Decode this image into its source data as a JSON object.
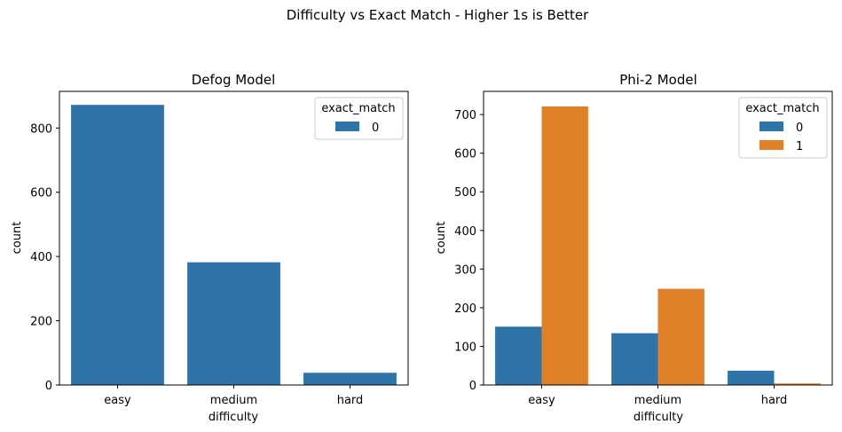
{
  "suptitle": "Difficulty vs Exact Match - Higher 1s is Better",
  "colors": {
    "series_0": "#2f74a8",
    "series_1": "#e0812a"
  },
  "chart_data": [
    {
      "type": "bar",
      "title": "Defog Model",
      "xlabel": "difficulty",
      "ylabel": "count",
      "categories": [
        "easy",
        "medium",
        "hard"
      ],
      "ylim": [
        0,
        914
      ],
      "yticks": [
        0,
        200,
        400,
        600,
        800
      ],
      "legend": {
        "title": "exact_match",
        "placement": "top-right"
      },
      "series": [
        {
          "name": "0",
          "color": "#2f74a8",
          "values": [
            872,
            382,
            38
          ]
        }
      ],
      "grid": false
    },
    {
      "type": "bar",
      "title": "Phi-2 Model",
      "xlabel": "difficulty",
      "ylabel": "count",
      "categories": [
        "easy",
        "medium",
        "hard"
      ],
      "ylim": [
        0,
        760
      ],
      "yticks": [
        0,
        100,
        200,
        300,
        400,
        500,
        600,
        700
      ],
      "legend": {
        "title": "exact_match",
        "placement": "top-right"
      },
      "series": [
        {
          "name": "0",
          "color": "#2f74a8",
          "values": [
            151,
            134,
            37
          ]
        },
        {
          "name": "1",
          "color": "#e0812a",
          "values": [
            721,
            249,
            4
          ]
        }
      ],
      "grid": false
    }
  ]
}
